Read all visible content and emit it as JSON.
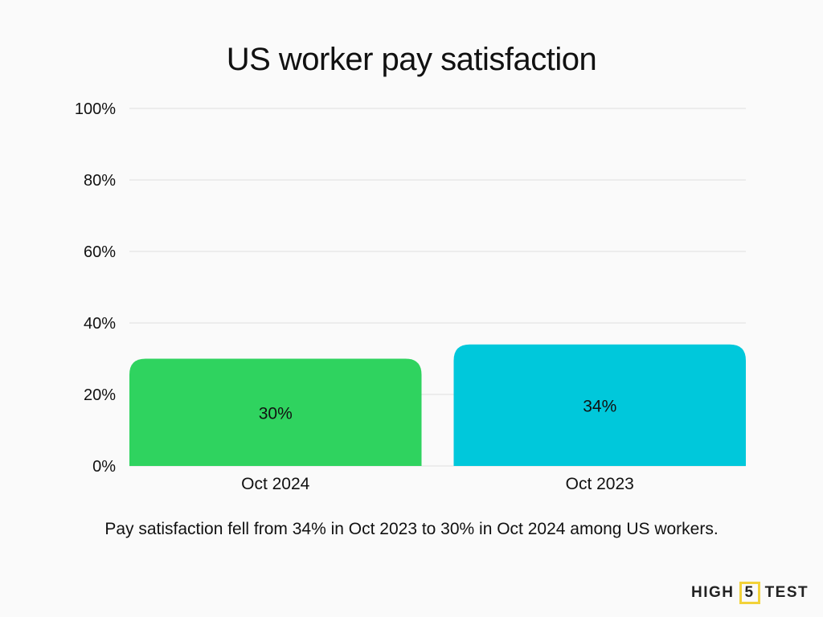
{
  "chart_data": {
    "type": "bar",
    "title": "US worker pay satisfaction",
    "categories": [
      "Oct 2024",
      "Oct 2023"
    ],
    "values": [
      30,
      34
    ],
    "data_labels": [
      "30%",
      "34%"
    ],
    "colors": [
      "#2fd35f",
      "#00c8db"
    ],
    "ylim": [
      0,
      100
    ],
    "yticks": [
      0,
      20,
      40,
      60,
      80,
      100
    ],
    "ytick_labels": [
      "0%",
      "20%",
      "40%",
      "60%",
      "80%",
      "100%"
    ],
    "xlabel": "",
    "ylabel": "",
    "grid": true,
    "legend": "none"
  },
  "caption": "Pay satisfaction fell from 34% in Oct 2023 to 30% in Oct 2024 among US workers.",
  "logo": {
    "left": "HIGH",
    "mid": "5",
    "right": "TEST",
    "accent": "#f2d23a"
  }
}
